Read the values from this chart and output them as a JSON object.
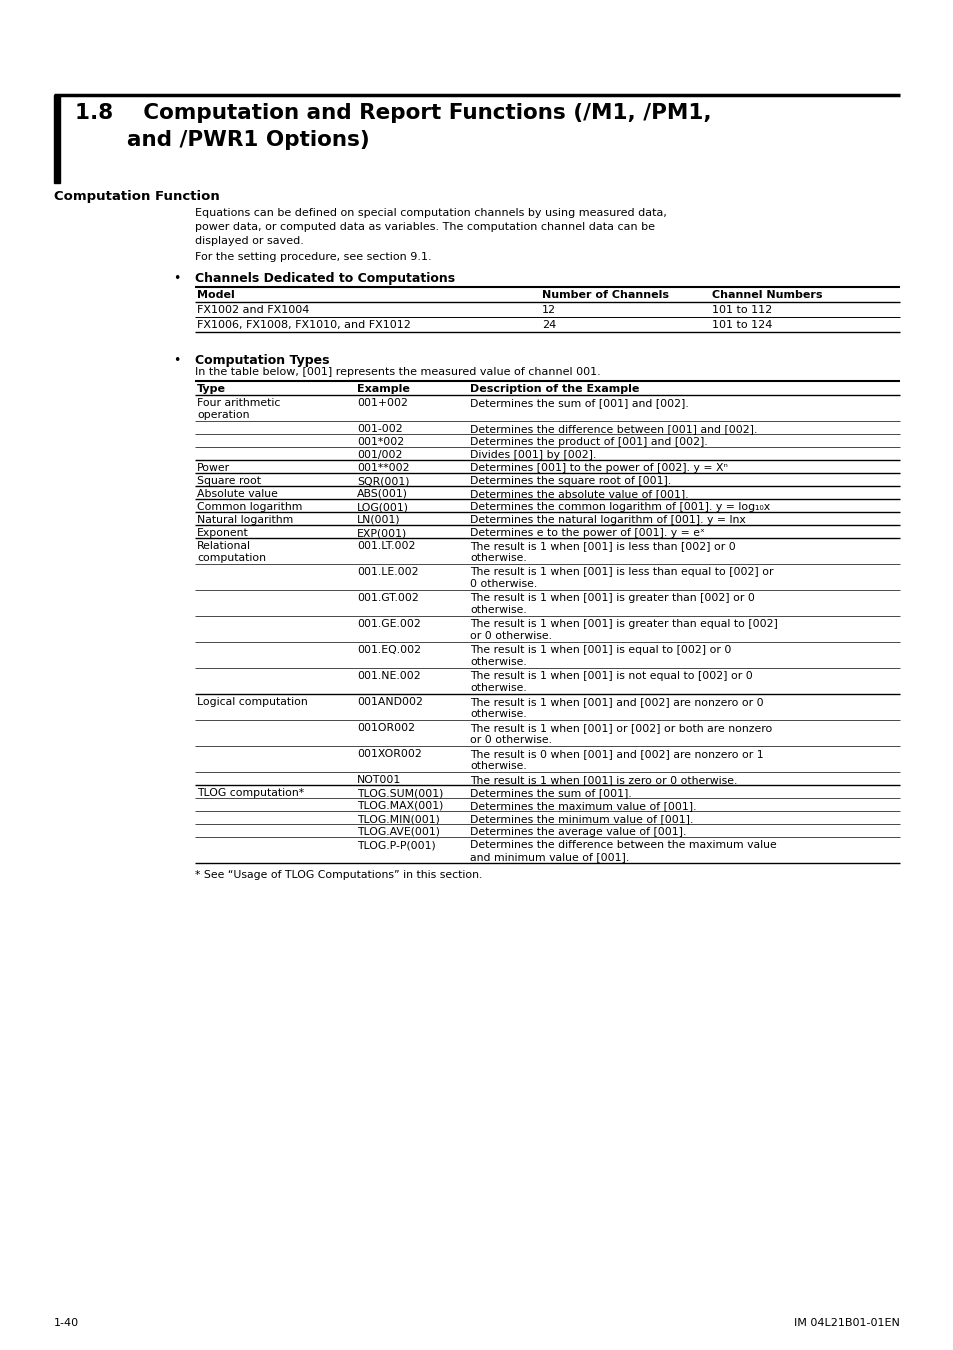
{
  "page_bg": "#ffffff",
  "section1_heading": "Computation Function",
  "section1_body": [
    "Equations can be defined on special computation channels by using measured data,",
    "power data, or computed data as variables. The computation channel data can be",
    "displayed or saved.",
    "For the setting procedure, see section 9.1."
  ],
  "subsec1_heading": "Channels Dedicated to Computations",
  "channels_table_headers": [
    "Model",
    "Number of Channels",
    "Channel Numbers"
  ],
  "channels_table_rows": [
    [
      "FX1002 and FX1004",
      "12",
      "101 to 112"
    ],
    [
      "FX1006, FX1008, FX1010, and FX1012",
      "24",
      "101 to 124"
    ]
  ],
  "subsec2_heading": "Computation Types",
  "subsec2_intro": "In the table below, [001] represents the measured value of channel 001.",
  "comp_table_rows": [
    [
      "Four arithmetic\noperation",
      "001+002",
      "Determines the sum of [001] and [002].",
      1
    ],
    [
      "",
      "001-002",
      "Determines the difference between [001] and [002].",
      0
    ],
    [
      "",
      "001*002",
      "Determines the product of [001] and [002].",
      0
    ],
    [
      "",
      "001/002",
      "Divides [001] by [002].",
      0
    ],
    [
      "Power",
      "001**002",
      "Determines [001] to the power of [002]. y = Xⁿ",
      1
    ],
    [
      "Square root",
      "SQR(001)",
      "Determines the square root of [001].",
      1
    ],
    [
      "Absolute value",
      "ABS(001)",
      "Determines the absolute value of [001].",
      1
    ],
    [
      "Common logarithm",
      "LOG(001)",
      "Determines the common logarithm of [001]. y = log₁₀x",
      1
    ],
    [
      "Natural logarithm",
      "LN(001)",
      "Determines the natural logarithm of [001]. y = lnx",
      1
    ],
    [
      "Exponent",
      "EXP(001)",
      "Determines e to the power of [001]. y = eˣ",
      1
    ],
    [
      "Relational\ncomputation",
      "001.LT.002",
      "The result is 1 when [001] is less than [002] or 0\notherwise.",
      1
    ],
    [
      "",
      "001.LE.002",
      "The result is 1 when [001] is less than equal to [002] or\n0 otherwise.",
      0
    ],
    [
      "",
      "001.GT.002",
      "The result is 1 when [001] is greater than [002] or 0\notherwise.",
      0
    ],
    [
      "",
      "001.GE.002",
      "The result is 1 when [001] is greater than equal to [002]\nor 0 otherwise.",
      0
    ],
    [
      "",
      "001.EQ.002",
      "The result is 1 when [001] is equal to [002] or 0\notherwise.",
      0
    ],
    [
      "",
      "001.NE.002",
      "The result is 1 when [001] is not equal to [002] or 0\notherwise.",
      0
    ],
    [
      "Logical computation",
      "001AND002",
      "The result is 1 when [001] and [002] are nonzero or 0\notherwise.",
      1
    ],
    [
      "",
      "001OR002",
      "The result is 1 when [001] or [002] or both are nonzero\nor 0 otherwise.",
      0
    ],
    [
      "",
      "001XOR002",
      "The result is 0 when [001] and [002] are nonzero or 1\notherwise.",
      0
    ],
    [
      "",
      "NOT001",
      "The result is 1 when [001] is zero or 0 otherwise.",
      0
    ],
    [
      "TLOG computation*",
      "TLOG.SUM(001)",
      "Determines the sum of [001].",
      1
    ],
    [
      "",
      "TLOG.MAX(001)",
      "Determines the maximum value of [001].",
      0
    ],
    [
      "",
      "TLOG.MIN(001)",
      "Determines the minimum value of [001].",
      0
    ],
    [
      "",
      "TLOG.AVE(001)",
      "Determines the average value of [001].",
      0
    ],
    [
      "",
      "TLOG.P-P(001)",
      "Determines the difference between the maximum value\nand minimum value of [001].",
      0
    ]
  ],
  "footnote": "* See “Usage of TLOG Computations” in this section.",
  "footer_left": "1-40",
  "footer_right": "IM 04L21B01-01EN"
}
